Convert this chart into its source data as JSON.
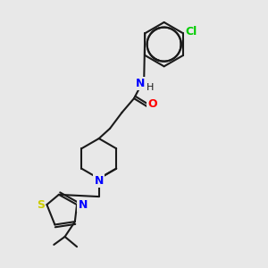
{
  "bg_color": "#e8e8e8",
  "bond_color": "#1a1a1a",
  "atom_colors": {
    "N": "#0000ff",
    "O": "#ff0000",
    "S": "#cccc00",
    "Cl": "#00cc00",
    "H": "#1a1a1a",
    "C": "#1a1a1a"
  },
  "title": "",
  "figsize": [
    3.0,
    3.0
  ],
  "dpi": 100
}
